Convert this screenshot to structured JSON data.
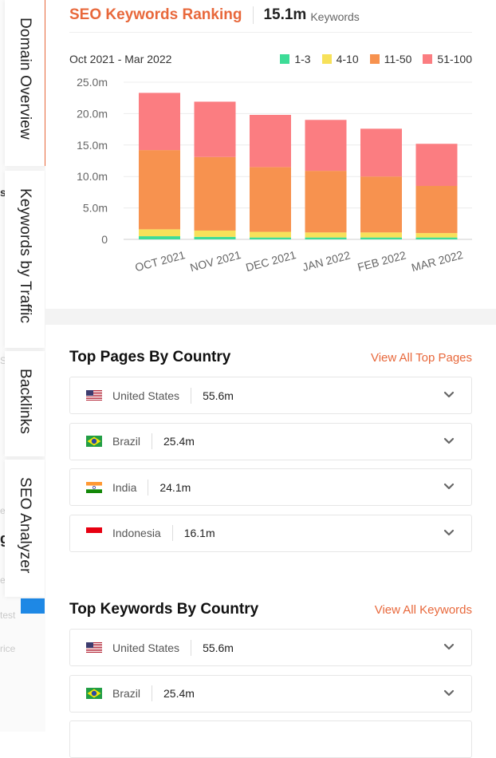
{
  "tabs": [
    {
      "label": "Domain Overview",
      "active": true
    },
    {
      "label": "Keywords by Traffic",
      "active": false
    },
    {
      "label": "Backlinks",
      "active": false
    },
    {
      "label": "SEO Analyzer",
      "active": false
    }
  ],
  "chart_card": {
    "title": "SEO Keywords Ranking",
    "total": "15.1m",
    "total_unit": "Keywords",
    "date_range": "Oct 2021 - Mar 2022"
  },
  "chart_data": {
    "type": "bar",
    "stacked": true,
    "categories": [
      "OCT 2021",
      "NOV 2021",
      "DEC 2021",
      "JAN 2022",
      "FEB 2022",
      "MAR 2022"
    ],
    "series": [
      {
        "name": "1-3",
        "color": "#3ddc97",
        "values": [
          0.5,
          0.4,
          0.3,
          0.3,
          0.3,
          0.3
        ]
      },
      {
        "name": "4-10",
        "color": "#f7e15a",
        "values": [
          1.1,
          1.0,
          0.9,
          0.8,
          0.8,
          0.7
        ]
      },
      {
        "name": "11-50",
        "color": "#f7924f",
        "values": [
          12.6,
          11.7,
          10.3,
          9.8,
          8.9,
          7.5
        ]
      },
      {
        "name": "51-100",
        "color": "#fb7d81",
        "values": [
          9.1,
          8.8,
          8.3,
          8.1,
          7.6,
          6.7
        ]
      }
    ],
    "y_ticks": [
      "25.0m",
      "20.0m",
      "15.0m",
      "10.0m",
      "5.0m",
      "0"
    ],
    "ylim": [
      0,
      25
    ],
    "grid": true,
    "legend_position": "top-right"
  },
  "top_pages": {
    "title": "Top Pages By Country",
    "link": "View All Top Pages",
    "rows": [
      {
        "country": "United States",
        "flag": "us",
        "value": "55.6m"
      },
      {
        "country": "Brazil",
        "flag": "br",
        "value": "25.4m"
      },
      {
        "country": "India",
        "flag": "in",
        "value": "24.1m"
      },
      {
        "country": "Indonesia",
        "flag": "id",
        "value": "16.1m"
      }
    ]
  },
  "top_keywords": {
    "title": "Top Keywords By Country",
    "link": "View All Keywords",
    "rows": [
      {
        "country": "United States",
        "flag": "us",
        "value": "55.6m"
      },
      {
        "country": "Brazil",
        "flag": "br",
        "value": "25.4m"
      }
    ]
  },
  "background_fragments": [
    "s",
    "Sc",
    "e",
    "g",
    "e",
    "test",
    "rice"
  ]
}
